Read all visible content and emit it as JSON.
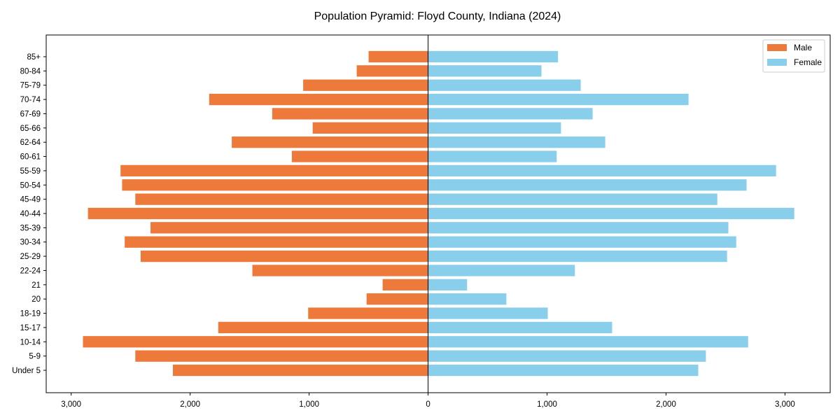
{
  "chart_data": {
    "type": "bar",
    "orientation": "horizontal",
    "subtype": "population-pyramid",
    "title": "Population Pyramid: Floyd County, Indiana (2024)",
    "xlabel": "",
    "ylabel": "",
    "xlim": [
      -3210,
      3380
    ],
    "xticks": [
      -3000,
      -2000,
      -1000,
      0,
      1000,
      2000,
      3000
    ],
    "xtick_labels": [
      "3,000",
      "2,000",
      "1,000",
      "0",
      "1,000",
      "2,000",
      "3,000"
    ],
    "grid": false,
    "legend_placement": "top-right",
    "categories": [
      "85+",
      "80-84",
      "75-79",
      "70-74",
      "67-69",
      "65-66",
      "62-64",
      "60-61",
      "55-59",
      "50-54",
      "45-49",
      "40-44",
      "35-39",
      "30-34",
      "25-29",
      "22-24",
      "21",
      "20",
      "18-19",
      "15-17",
      "10-14",
      "5-9",
      "Under 5"
    ],
    "series": [
      {
        "name": "Male",
        "color": "#ED7A3B",
        "values": [
          500,
          600,
          1050,
          1840,
          1310,
          970,
          1650,
          1145,
          2585,
          2572,
          2461,
          2859,
          2333,
          2550,
          2416,
          1477,
          382,
          517,
          1008,
          1764,
          2901,
          2461,
          2145
        ]
      },
      {
        "name": "Female",
        "color": "#89CEEA",
        "values": [
          1092,
          953,
          1283,
          2189,
          1383,
          1117,
          1489,
          1081,
          2925,
          2677,
          2431,
          3078,
          2524,
          2590,
          2513,
          1234,
          328,
          658,
          1006,
          1547,
          2690,
          2335,
          2271
        ]
      }
    ]
  }
}
